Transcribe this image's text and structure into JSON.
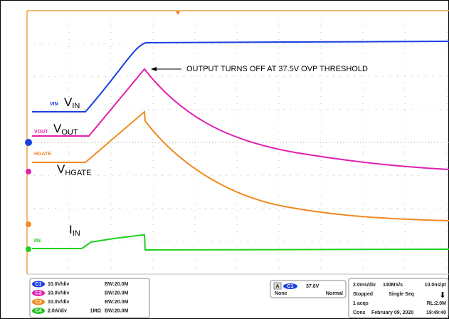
{
  "annotation": "OUTPUT TURNS OFF AT 37.5V OVP THRESHOLD",
  "trace_labels": {
    "vin": {
      "tag": "VIN",
      "main": "V",
      "sub": "IN"
    },
    "vout": {
      "tag": "VOUT",
      "main": "V",
      "sub": "OUT"
    },
    "hgate": {
      "tag": "HGATE",
      "main": "V",
      "sub": "HGATE"
    },
    "iin": {
      "tag": "IIN",
      "main": "I",
      "sub": "IN"
    }
  },
  "channels": [
    {
      "badge": "C1",
      "scale": "10.0V/div",
      "bw": "BW:20.0M"
    },
    {
      "badge": "C2",
      "scale": "10.0V/div",
      "bw": "BW:20.0M"
    },
    {
      "badge": "C3",
      "scale": "10.0V/div",
      "bw": "BW:20.0M"
    },
    {
      "badge": "C4",
      "scale": "2.0A/div",
      "impedance": "1MΩ",
      "bw": "BW:20.0M"
    }
  ],
  "trigger": {
    "mode": "A",
    "source": "C1",
    "level": "37.6V",
    "coupling": "None",
    "type": "Normal"
  },
  "acquisition": {
    "row1": [
      "2.0ms/div",
      "100MS/s",
      "10.0ns/pt"
    ],
    "row2": [
      "Stopped",
      "Single Seq"
    ],
    "row3": [
      "1 acqs",
      "RL:2.0M"
    ],
    "row4": [
      "Cons",
      "February 09, 2020",
      "19:49:40"
    ]
  }
}
